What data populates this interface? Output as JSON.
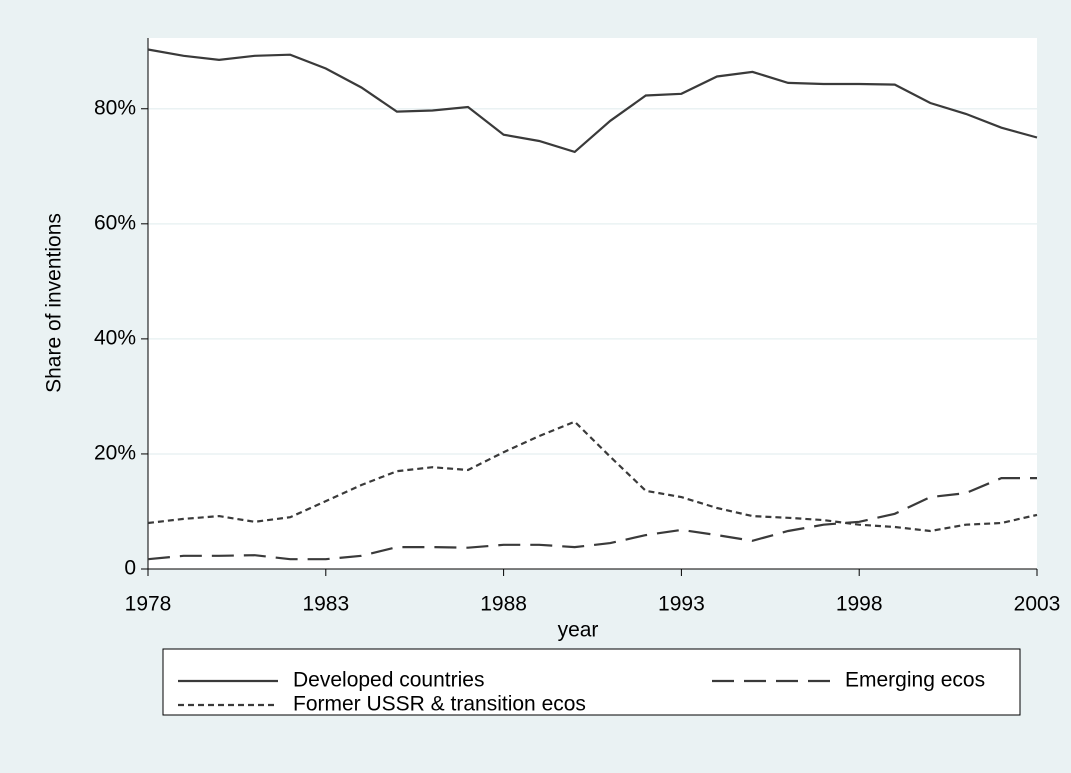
{
  "chart_data": {
    "type": "line",
    "x": [
      1978,
      1979,
      1980,
      1981,
      1982,
      1983,
      1984,
      1985,
      1986,
      1987,
      1988,
      1989,
      1990,
      1991,
      1992,
      1993,
      1994,
      1995,
      1996,
      1997,
      1998,
      1999,
      2000,
      2001,
      2002,
      2003
    ],
    "series": [
      {
        "name": "Developed countries",
        "color": "#3a3a3a",
        "dash": "solid",
        "values": [
          90.3,
          89.2,
          88.5,
          89.2,
          89.4,
          87.0,
          83.7,
          79.5,
          79.7,
          80.3,
          75.5,
          74.4,
          72.5,
          77.9,
          82.3,
          82.6,
          85.6,
          86.4,
          84.5,
          84.3,
          84.3,
          84.2,
          81.0,
          79.1,
          76.7,
          75.0
        ]
      },
      {
        "name": "Emerging ecos",
        "color": "#3a3a3a",
        "dash": "longdash",
        "values": [
          1.7,
          2.3,
          2.3,
          2.4,
          1.7,
          1.7,
          2.3,
          3.8,
          3.8,
          3.7,
          4.2,
          4.2,
          3.8,
          4.5,
          5.9,
          6.8,
          5.9,
          4.9,
          6.6,
          7.7,
          8.2,
          9.6,
          12.5,
          13.2,
          15.8,
          15.8
        ]
      },
      {
        "name": "Former USSR & transition ecos",
        "color": "#3a3a3a",
        "dash": "shortdash",
        "values": [
          8.0,
          8.7,
          9.2,
          8.2,
          9.0,
          11.8,
          14.6,
          17.0,
          17.7,
          17.2,
          20.3,
          23.1,
          25.6,
          19.5,
          13.6,
          12.5,
          10.6,
          9.2,
          8.9,
          8.5,
          7.7,
          7.3,
          6.6,
          7.7,
          8.0,
          9.4
        ]
      }
    ],
    "xlabel": "year",
    "ylabel": "Share of inventions",
    "xlim": [
      1978,
      2003
    ],
    "xticks": [
      1978,
      1983,
      1988,
      1993,
      1998,
      2003
    ],
    "ylim": [
      0,
      92.3
    ],
    "yticks": [
      0,
      {
        "value": 20,
        "label": "20%"
      },
      {
        "value": 40,
        "label": "40%"
      },
      {
        "value": 60,
        "label": "60%"
      },
      {
        "value": 80,
        "label": "80%"
      }
    ],
    "grid": true,
    "legend": "bottom"
  }
}
